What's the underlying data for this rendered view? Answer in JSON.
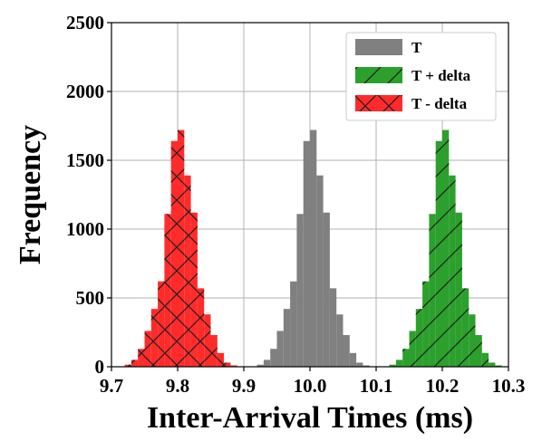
{
  "chart_data": {
    "type": "bar",
    "title": "",
    "xlabel": "Inter-Arrival Times (ms)",
    "ylabel": "Frequency",
    "xlim": [
      9.7,
      10.3
    ],
    "ylim": [
      0,
      2500
    ],
    "x_ticks": [
      "9.7",
      "9.8",
      "9.9",
      "10.0",
      "10.1",
      "10.2",
      "10.3"
    ],
    "y_ticks": [
      "0",
      "500",
      "1000",
      "1500",
      "2000",
      "2500"
    ],
    "grid": true,
    "legend_position": "top-right",
    "series": [
      {
        "name": "T",
        "color": "#808080",
        "hatch": "none",
        "bin_width": 0.01,
        "bin_left": [
          9.92,
          9.93,
          9.94,
          9.95,
          9.96,
          9.97,
          9.98,
          9.99,
          10.0,
          10.01,
          10.02,
          10.03,
          10.04,
          10.05,
          10.06,
          10.07,
          10.08
        ],
        "counts": [
          15,
          50,
          130,
          260,
          420,
          620,
          1110,
          1640,
          1720,
          1390,
          1120,
          570,
          380,
          230,
          100,
          30,
          10
        ]
      },
      {
        "name": "T + delta",
        "color": "#2ca02c",
        "hatch": "diagonal",
        "bin_width": 0.01,
        "bin_left": [
          10.12,
          10.13,
          10.14,
          10.15,
          10.16,
          10.17,
          10.18,
          10.19,
          10.2,
          10.21,
          10.22,
          10.23,
          10.24,
          10.25,
          10.26,
          10.27,
          10.28
        ],
        "counts": [
          15,
          50,
          130,
          260,
          420,
          620,
          1110,
          1640,
          1720,
          1390,
          1120,
          570,
          380,
          230,
          100,
          30,
          10
        ]
      },
      {
        "name": "T - delta",
        "color": "#ff2b2b",
        "hatch": "cross",
        "bin_width": 0.01,
        "bin_left": [
          9.72,
          9.73,
          9.74,
          9.75,
          9.76,
          9.77,
          9.78,
          9.79,
          9.8,
          9.81,
          9.82,
          9.83,
          9.84,
          9.85,
          9.86,
          9.87,
          9.88
        ],
        "counts": [
          15,
          50,
          130,
          260,
          420,
          620,
          1110,
          1640,
          1720,
          1390,
          1120,
          570,
          380,
          230,
          100,
          30,
          10
        ]
      }
    ]
  }
}
